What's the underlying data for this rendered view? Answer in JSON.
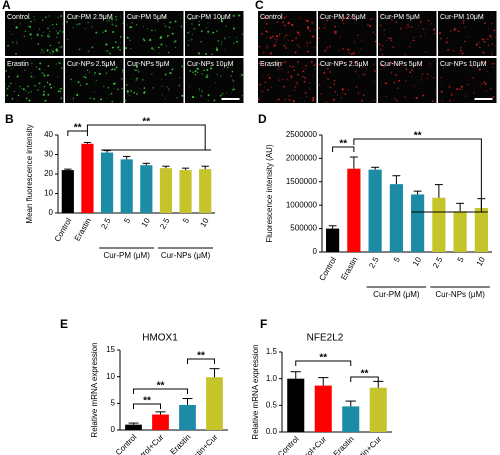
{
  "image_panels": [
    {
      "label": "A",
      "captions": [
        "Control",
        "Cur-PM 2.5μM",
        "Cur-PM 5μM",
        "Cur-PM 10μM",
        "Erastin",
        "Cur-NPs 2.5μM",
        "Cur-NPs 5μM",
        "Cur-NPs 10μM"
      ]
    },
    {
      "label": "C",
      "captions": [
        "Control",
        "Cur-PM 2.5μM",
        "Cur-PM 5μM",
        "Cur-PM 10μM",
        "Erastin",
        "Cur-NPs 2.5μM",
        "Cur-NPs 5μM",
        "Cur-NPs 10μM"
      ]
    }
  ],
  "chart_data": [
    {
      "type": "bar",
      "panel_label": "B",
      "y_label": "Mean fluorescence intensity",
      "categories": [
        "Control",
        "Erastin",
        "2.5",
        "5",
        "10",
        "2.5",
        "5",
        "10"
      ],
      "values": [
        22,
        35.5,
        31,
        27.5,
        24.5,
        23,
        22,
        22.5
      ],
      "errors": [
        0.5,
        0.7,
        1,
        1.5,
        1,
        1,
        1,
        1.5
      ],
      "colors": [
        "#000000",
        "#ff0000",
        "#1b8ba6",
        "#1b8ba6",
        "#1b8ba6",
        "#c5c52b",
        "#c5c52b",
        "#c5c52b"
      ],
      "groups": [
        "Cur-PM (μM)",
        "Cur-NPs (μM)"
      ],
      "annotations": [
        "**",
        "**"
      ],
      "ylim": [
        0,
        40
      ],
      "yticks": [
        0,
        10,
        20,
        30,
        40
      ]
    },
    {
      "type": "bar",
      "panel_label": "D",
      "y_label": "Fluorescence intensity (AU)",
      "categories": [
        "Control",
        "Erastin",
        "2.5",
        "5",
        "10",
        "2.5",
        "5",
        "10"
      ],
      "values": [
        500000,
        1780000,
        1760000,
        1450000,
        1230000,
        1160000,
        870000,
        940000
      ],
      "errors": [
        60000,
        250000,
        50000,
        180000,
        70000,
        280000,
        170000,
        200000
      ],
      "colors": [
        "#000000",
        "#ff0000",
        "#1b8ba6",
        "#1b8ba6",
        "#1b8ba6",
        "#c5c52b",
        "#c5c52b",
        "#c5c52b"
      ],
      "groups": [
        "Cur-PM (μM)",
        "Cur-NPs (μM)"
      ],
      "annotations": [
        "**",
        "**"
      ],
      "ylim": [
        0,
        2500000
      ],
      "yticks": [
        0,
        500000,
        1000000,
        1500000,
        2000000,
        2500000
      ]
    },
    {
      "type": "bar",
      "panel_label": "E",
      "title": "HMOX1",
      "y_label": "Relative mRNA expression",
      "categories": [
        "Control",
        "Control+Cur",
        "Erastin",
        "Erastin+Cur"
      ],
      "values": [
        1,
        2.9,
        4.7,
        9.9
      ],
      "errors": [
        0.3,
        0.5,
        1.2,
        1.6
      ],
      "colors": [
        "#000000",
        "#ff0000",
        "#1b8ba6",
        "#c5c52b"
      ],
      "annotations": [
        "**",
        "**",
        "**"
      ],
      "ylim": [
        0,
        15
      ],
      "yticks": [
        0,
        5,
        10,
        15
      ]
    },
    {
      "type": "bar",
      "panel_label": "F",
      "title": "NFE2L2",
      "y_label": "Relative mRNA expression",
      "categories": [
        "Control",
        "Control+Cur",
        "Erastin",
        "Erastin+Cur"
      ],
      "values": [
        1.0,
        0.87,
        0.48,
        0.83
      ],
      "errors": [
        0.13,
        0.15,
        0.1,
        0.12
      ],
      "colors": [
        "#000000",
        "#ff0000",
        "#1b8ba6",
        "#c5c52b"
      ],
      "annotations": [
        "**",
        "**"
      ],
      "ylim": [
        0,
        1.5
      ],
      "yticks": [
        {
          "value": 0,
          "label": "0.0"
        },
        0.5,
        {
          "value": 1,
          "label": "1.0"
        },
        1.5
      ]
    }
  ]
}
